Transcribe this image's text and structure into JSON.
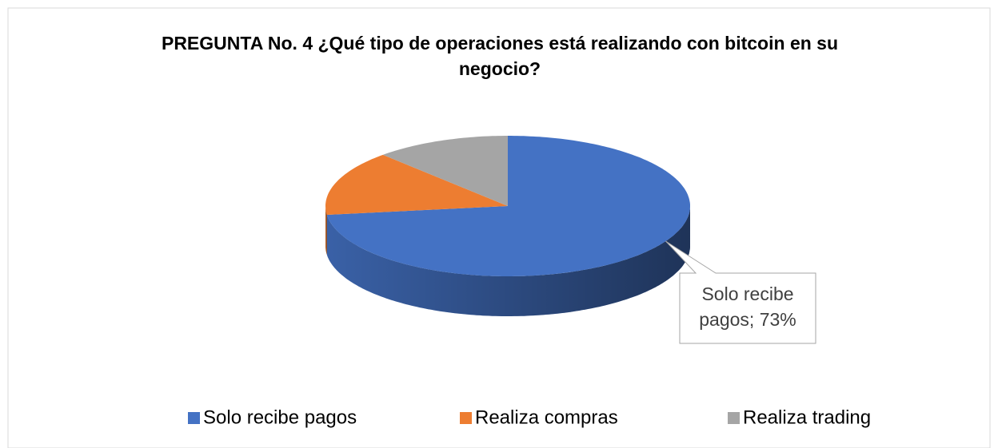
{
  "chart_data": {
    "type": "pie",
    "title": "PREGUNTA No. 4  ¿Qué tipo de operaciones está realizando con bitcoin en su negocio?",
    "categories": [
      "Solo recibe pagos",
      "Realiza compras",
      "Realiza trading"
    ],
    "values": [
      73,
      15,
      12
    ],
    "value_labels": [
      "Solo recibe pagos; 73%",
      null,
      null
    ],
    "colors": [
      "#4472c4",
      "#ed7d31",
      "#a5a5a5"
    ],
    "legend": "bottom"
  }
}
